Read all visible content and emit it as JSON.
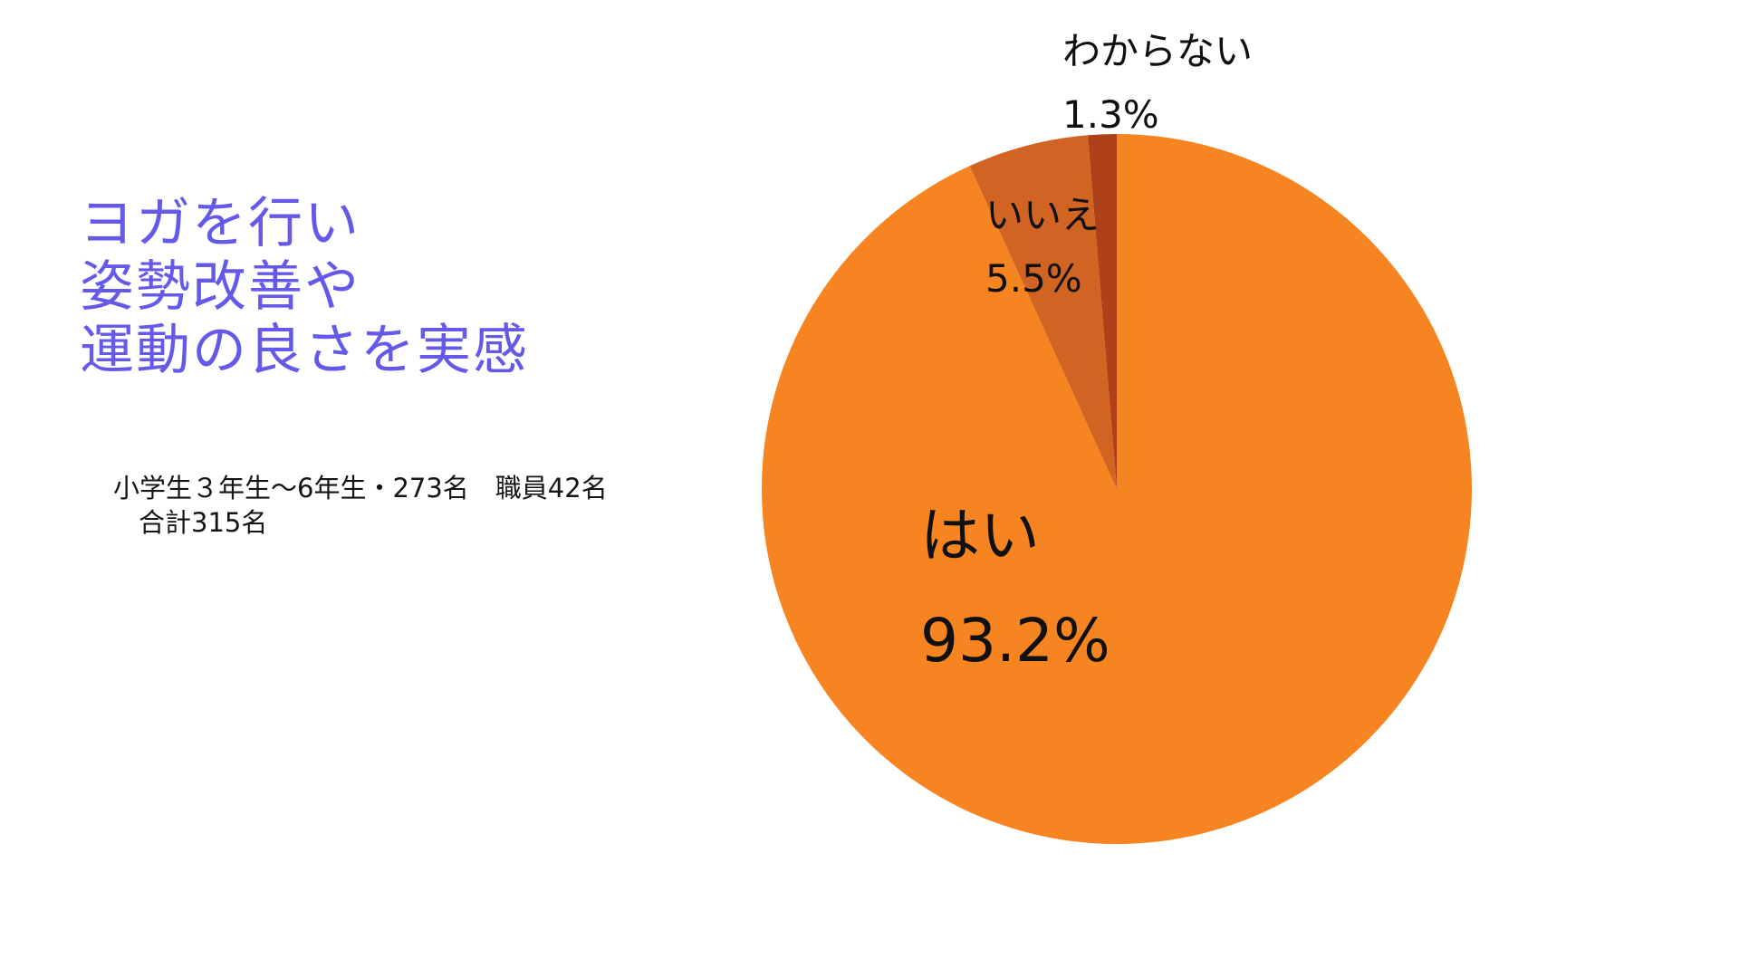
{
  "page": {
    "background_color": "#ffffff",
    "title_color": "#6459E8",
    "label_text_color": "#101010"
  },
  "title": {
    "lines": [
      "ヨガを行い",
      "姿勢改善や",
      "運動の良さを実感"
    ]
  },
  "subtitle": {
    "lines": [
      "小学生３年生〜6年生・273名　職員42名",
      "合計315名"
    ]
  },
  "chart_data": {
    "type": "pie",
    "title": "ヨガを行い 姿勢改善や 運動の良さを実感",
    "subtitle": "小学生３年生〜6年生・273名 職員42名 合計315名",
    "legend_position": "none",
    "labels_on_chart": true,
    "start_angle_deg": 0,
    "direction": "clockwise",
    "slices": [
      {
        "label": "はい",
        "value": 93.2,
        "pct_label": "93.2%",
        "color": "#F68420"
      },
      {
        "label": "いいえ",
        "value": 5.5,
        "pct_label": "5.5%",
        "color": "#D26423"
      },
      {
        "label": "わからない",
        "value": 1.3,
        "pct_label": "1.3%",
        "color": "#AF4119"
      }
    ]
  }
}
